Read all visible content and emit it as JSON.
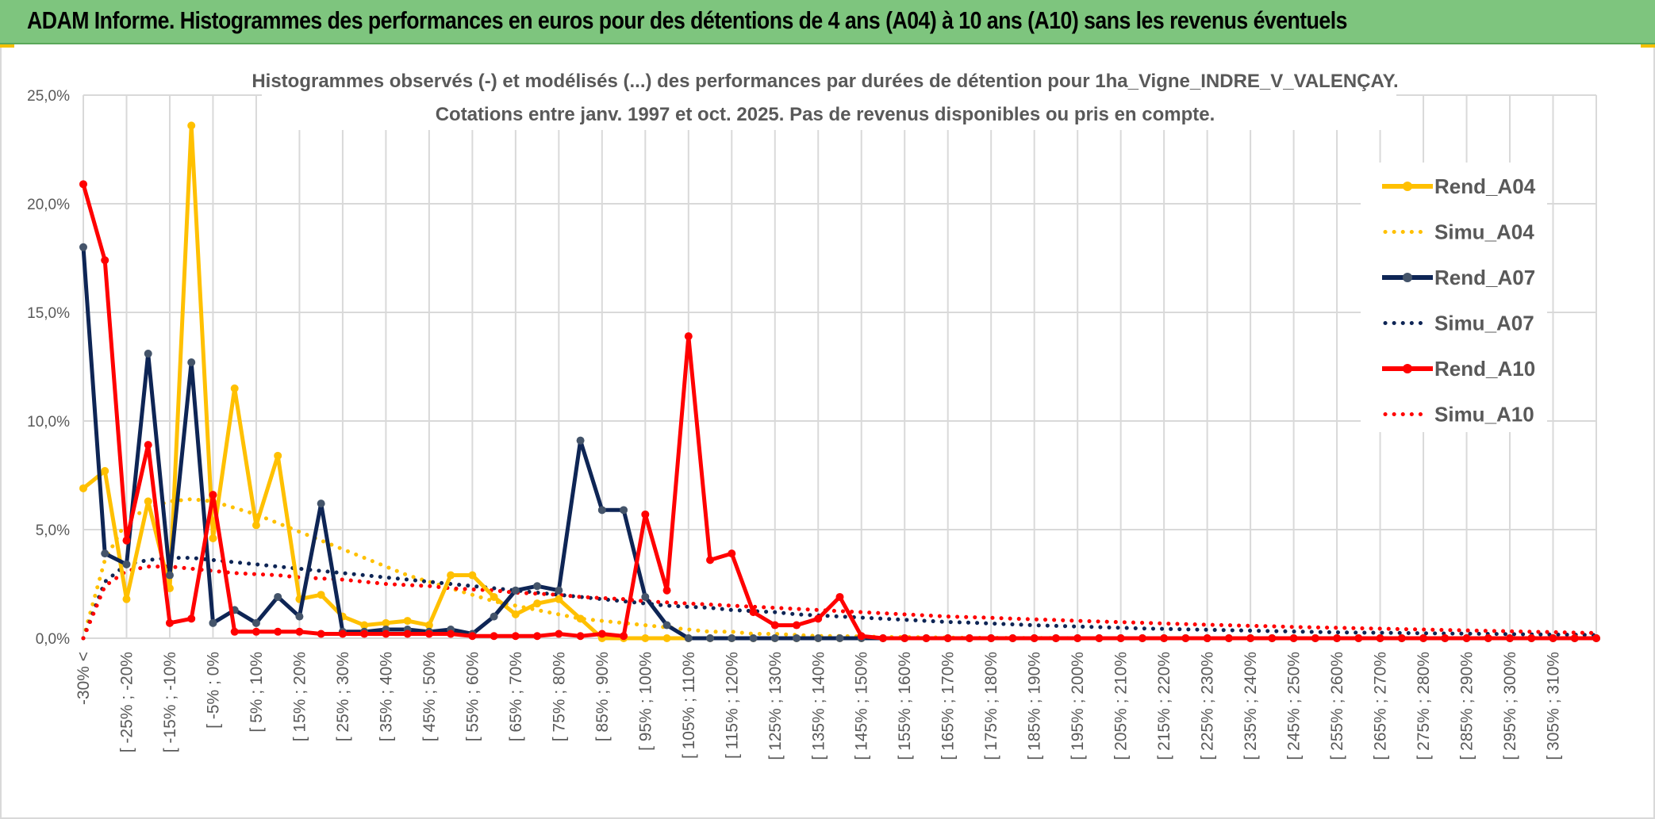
{
  "header": {
    "title": "ADAM Informe. Histogrammes des performances en euros pour des détentions de 4 ans (A04) à 10 ans (A10) sans les revenus éventuels"
  },
  "chart_data": {
    "type": "line",
    "title": "Histogrammes observés (-) et modélisés (...) des performances par durées de détention pour 1ha_Vigne_INDRE_V_VALENÇAY.",
    "subtitle": "Cotations entre janv. 1997 et oct. 2025. Pas de revenus disponibles ou pris en compte.",
    "xlabel": "",
    "ylabel": "",
    "ylim": [
      0,
      25
    ],
    "yticks": [
      "0,0%",
      "5,0%",
      "10,0%",
      "15,0%",
      "20,0%",
      "25,0%"
    ],
    "grid": true,
    "legend_position": "right",
    "x_tick_labels": [
      "-30% <",
      "[ -25% ; -20%",
      "[ -15% ; -10%",
      "[ -5% ; 0%",
      "[ 5% ; 10%",
      "[ 15% ; 20%",
      "[ 25% ; 30%",
      "[ 35% ; 40%",
      "[ 45% ; 50%",
      "[ 55% ; 60%",
      "[ 65% ; 70%",
      "[ 75% ; 80%",
      "[ 85% ; 90%",
      "[ 95% ; 100%",
      "[ 105% ; 110%",
      "[ 115% ; 120%",
      "[ 125% ; 130%",
      "[ 135% ; 140%",
      "[ 145% ; 150%",
      "[ 155% ; 160%",
      "[ 165% ; 170%",
      "[ 175% ; 180%",
      "[ 185% ; 190%",
      "[ 195% ; 200%",
      "[ 205% ; 210%",
      "[ 215% ; 220%",
      "[ 225% ; 230%",
      "[ 235% ; 240%",
      "[ 245% ; 250%",
      "[ 255% ; 260%",
      "[ 265% ; 270%",
      "[ 275% ; 280%",
      "[ 285% ; 290%",
      "[ 295% ; 300%",
      "[ 305% ; 310%"
    ],
    "n_bins": 71,
    "series": [
      {
        "name": "Rend_A04",
        "color": "#ffc000",
        "style": "solid",
        "markers": true,
        "values": [
          6.9,
          7.7,
          1.8,
          6.3,
          2.3,
          23.6,
          4.6,
          11.5,
          5.2,
          8.4,
          1.8,
          2.0,
          1.0,
          0.6,
          0.7,
          0.8,
          0.6,
          2.9,
          2.9,
          1.9,
          1.1,
          1.6,
          1.8,
          0.9,
          0,
          0,
          0,
          0,
          0,
          0,
          0,
          0,
          0,
          0,
          0,
          0,
          0,
          0,
          0,
          0,
          0,
          0,
          0,
          0,
          0,
          0,
          0,
          0,
          0,
          0,
          0,
          0,
          0,
          0,
          0,
          0,
          0,
          0,
          0,
          0,
          0,
          0,
          0,
          0,
          0,
          0,
          0,
          0,
          0,
          0,
          0
        ]
      },
      {
        "name": "Simu_A04",
        "color": "#ffc000",
        "style": "dotted",
        "markers": false,
        "values": [
          0,
          3.6,
          5.4,
          6.0,
          6.3,
          6.4,
          6.3,
          6.0,
          5.7,
          5.3,
          4.9,
          4.5,
          4.1,
          3.7,
          3.3,
          2.9,
          2.6,
          2.3,
          2.0,
          1.7,
          1.5,
          1.3,
          1.1,
          0.9,
          0.8,
          0.7,
          0.6,
          0.5,
          0.4,
          0.3,
          0.3,
          0.2,
          0.2,
          0.15,
          0.1,
          0.1,
          0.08,
          0.06,
          0.05,
          0.04,
          0.03,
          0.02,
          0.02,
          0.01,
          0.01,
          0.01,
          0,
          0,
          0,
          0,
          0,
          0,
          0,
          0,
          0,
          0,
          0,
          0,
          0,
          0,
          0,
          0,
          0,
          0,
          0,
          0,
          0,
          0,
          0,
          0,
          0
        ]
      },
      {
        "name": "Rend_A07",
        "color": "#0e2555",
        "style": "solid",
        "markers": true,
        "values": [
          18.0,
          3.9,
          3.4,
          13.1,
          2.9,
          12.7,
          0.7,
          1.3,
          0.7,
          1.9,
          1.0,
          6.2,
          0.3,
          0.3,
          0.4,
          0.4,
          0.3,
          0.4,
          0.2,
          1.0,
          2.2,
          2.4,
          2.2,
          9.1,
          5.9,
          5.9,
          1.9,
          0.6,
          0,
          0,
          0,
          0,
          0,
          0,
          0,
          0,
          0,
          0,
          0,
          0,
          0,
          0,
          0,
          0,
          0,
          0,
          0,
          0,
          0,
          0,
          0,
          0,
          0,
          0,
          0,
          0,
          0,
          0,
          0,
          0,
          0,
          0,
          0,
          0,
          0,
          0,
          0,
          0,
          0,
          0,
          0
        ]
      },
      {
        "name": "Simu_A07",
        "color": "#0e2555",
        "style": "dotted",
        "markers": false,
        "values": [
          0,
          2.6,
          3.4,
          3.6,
          3.7,
          3.7,
          3.6,
          3.5,
          3.4,
          3.3,
          3.2,
          3.1,
          3.0,
          2.9,
          2.8,
          2.7,
          2.6,
          2.5,
          2.4,
          2.3,
          2.2,
          2.1,
          2.0,
          1.9,
          1.8,
          1.7,
          1.6,
          1.5,
          1.45,
          1.4,
          1.3,
          1.25,
          1.2,
          1.1,
          1.05,
          1.0,
          0.95,
          0.9,
          0.85,
          0.8,
          0.75,
          0.72,
          0.68,
          0.64,
          0.6,
          0.57,
          0.54,
          0.51,
          0.48,
          0.45,
          0.43,
          0.41,
          0.39,
          0.37,
          0.35,
          0.33,
          0.31,
          0.29,
          0.27,
          0.26,
          0.25,
          0.24,
          0.23,
          0.22,
          0.21,
          0.2,
          0.19,
          0.18,
          0.17,
          0.16,
          0.15
        ]
      },
      {
        "name": "Rend_A10",
        "color": "#ff0000",
        "style": "solid",
        "markers": true,
        "values": [
          20.9,
          17.4,
          4.5,
          8.9,
          0.7,
          0.9,
          6.6,
          0.3,
          0.3,
          0.3,
          0.3,
          0.2,
          0.2,
          0.2,
          0.2,
          0.2,
          0.2,
          0.2,
          0.1,
          0.1,
          0.1,
          0.1,
          0.2,
          0.1,
          0.2,
          0.1,
          5.7,
          2.2,
          13.9,
          3.6,
          3.9,
          1.2,
          0.6,
          0.6,
          0.9,
          1.9,
          0.1,
          0,
          0,
          0,
          0,
          0,
          0,
          0,
          0,
          0,
          0,
          0,
          0,
          0,
          0,
          0,
          0,
          0,
          0,
          0,
          0,
          0,
          0,
          0,
          0,
          0,
          0,
          0,
          0,
          0,
          0,
          0,
          0,
          0,
          0
        ]
      },
      {
        "name": "Simu_A10",
        "color": "#ff0000",
        "style": "dotted",
        "markers": false,
        "values": [
          0,
          2.4,
          3.1,
          3.3,
          3.3,
          3.2,
          3.1,
          3.0,
          2.95,
          2.9,
          2.8,
          2.75,
          2.7,
          2.6,
          2.5,
          2.45,
          2.4,
          2.3,
          2.25,
          2.2,
          2.1,
          2.05,
          2.0,
          1.9,
          1.85,
          1.8,
          1.7,
          1.65,
          1.6,
          1.55,
          1.5,
          1.45,
          1.4,
          1.35,
          1.3,
          1.25,
          1.2,
          1.15,
          1.1,
          1.05,
          1.0,
          0.97,
          0.94,
          0.9,
          0.87,
          0.84,
          0.8,
          0.77,
          0.74,
          0.71,
          0.68,
          0.65,
          0.62,
          0.6,
          0.57,
          0.55,
          0.52,
          0.5,
          0.48,
          0.46,
          0.44,
          0.42,
          0.4,
          0.38,
          0.36,
          0.34,
          0.32,
          0.3,
          0.28,
          0.26,
          0.24
        ]
      }
    ]
  }
}
